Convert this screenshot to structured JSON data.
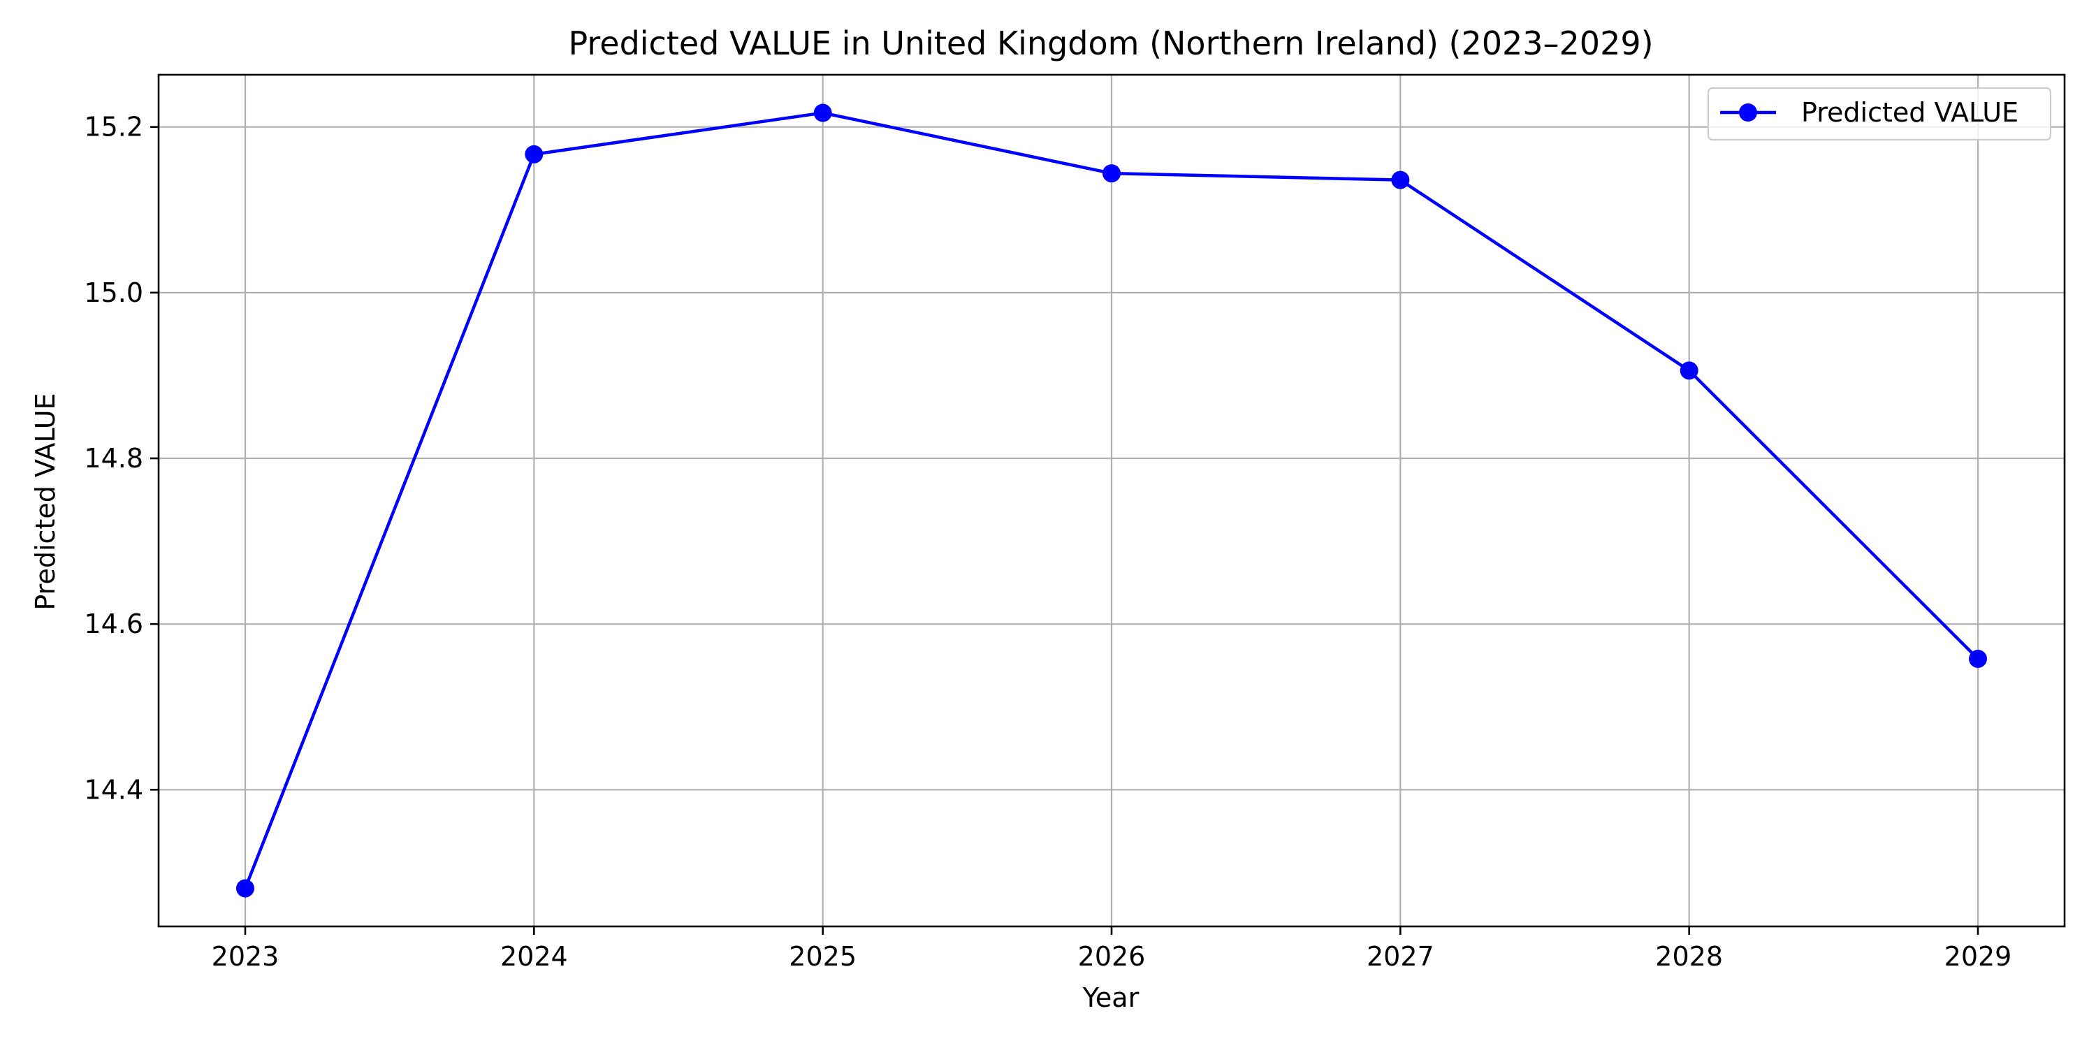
{
  "chart_data": {
    "type": "line",
    "title": "Predicted VALUE in United Kingdom (Northern Ireland) (2023–2029)",
    "xlabel": "Year",
    "ylabel": "Predicted VALUE",
    "x": [
      2023,
      2024,
      2025,
      2026,
      2027,
      2028,
      2029
    ],
    "x_tick_labels": [
      "2023",
      "2024",
      "2025",
      "2026",
      "2027",
      "2028",
      "2029"
    ],
    "y_ticks": [
      14.4,
      14.6,
      14.8,
      15.0,
      15.2
    ],
    "y_tick_labels": [
      "14.4",
      "14.6",
      "14.8",
      "15.0",
      "15.2"
    ],
    "xlim": [
      2022.7,
      2029.3
    ],
    "ylim": [
      14.235,
      15.263
    ],
    "grid": true,
    "legend_position": "top-right",
    "series": [
      {
        "name": "Predicted VALUE",
        "color": "#0000ff",
        "marker": "circle",
        "values": [
          14.281,
          15.167,
          15.217,
          15.144,
          15.136,
          14.906,
          14.558
        ]
      }
    ]
  }
}
